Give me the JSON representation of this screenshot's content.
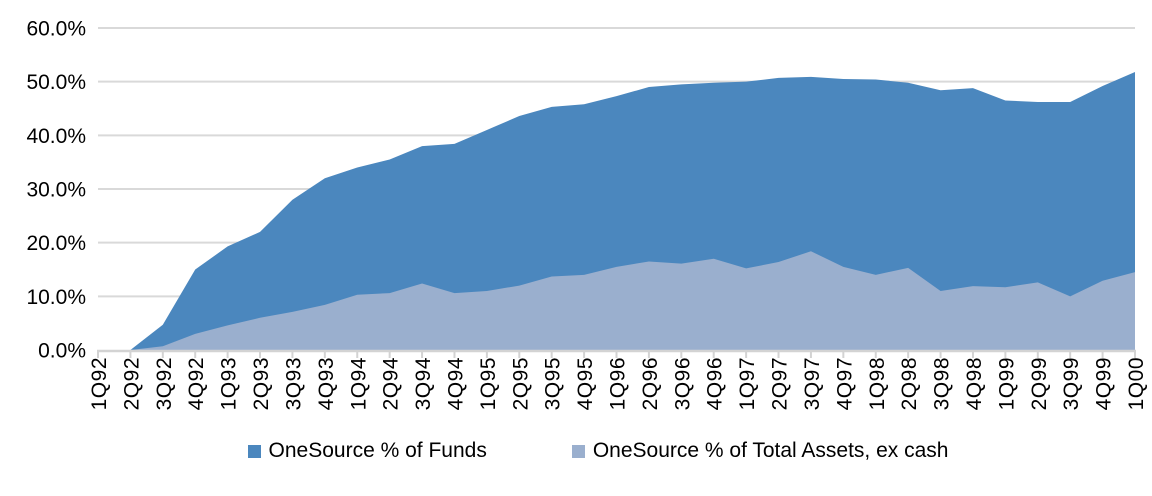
{
  "chart_data": {
    "type": "area",
    "title": "",
    "xlabel": "",
    "ylabel": "",
    "categories": [
      "1Q92",
      "2Q92",
      "3Q92",
      "4Q92",
      "1Q93",
      "2Q93",
      "3Q93",
      "4Q93",
      "1Q94",
      "2Q94",
      "3Q94",
      "4Q94",
      "1Q95",
      "2Q95",
      "3Q95",
      "4Q95",
      "1Q96",
      "2Q96",
      "3Q96",
      "4Q96",
      "1Q97",
      "2Q97",
      "3Q97",
      "4Q97",
      "1Q98",
      "2Q98",
      "3Q98",
      "4Q98",
      "1Q99",
      "2Q99",
      "3Q99",
      "4Q99",
      "1Q00"
    ],
    "series": [
      {
        "name": "OneSource % of Funds",
        "color": "#4B87BE",
        "values": [
          0,
          0,
          4.7,
          15.0,
          19.3,
          22.0,
          28.0,
          32.0,
          34.0,
          35.5,
          38.0,
          38.4,
          41.0,
          43.6,
          45.3,
          45.8,
          47.3,
          49.0,
          49.5,
          49.8,
          50.0,
          50.7,
          50.9,
          50.5,
          50.4,
          49.8,
          48.4,
          48.8,
          46.5,
          46.2,
          46.2,
          49.2,
          51.8
        ]
      },
      {
        "name": "OneSource % of Total Assets, ex cash",
        "color": "#9AAFCE",
        "values": [
          0,
          0,
          0.7,
          3.0,
          4.6,
          6.0,
          7.1,
          8.4,
          10.3,
          10.6,
          12.4,
          10.6,
          11.0,
          12.0,
          13.7,
          14.0,
          15.5,
          16.5,
          16.1,
          17.0,
          15.2,
          16.4,
          18.4,
          15.5,
          14.0,
          15.3,
          11.0,
          11.9,
          11.7,
          12.6,
          10.0,
          12.9,
          14.5
        ]
      }
    ],
    "series_mode": "overlaid",
    "ylim": [
      0,
      60
    ],
    "y_ticks": [
      {
        "value": 0,
        "label": "0.0%"
      },
      {
        "value": 10,
        "label": "10.0%"
      },
      {
        "value": 20,
        "label": "20.0%"
      },
      {
        "value": 30,
        "label": "30.0%"
      },
      {
        "value": 40,
        "label": "40.0%"
      },
      {
        "value": 50,
        "label": "50.0%"
      },
      {
        "value": 60,
        "label": "60.0%"
      }
    ],
    "grid": true,
    "legend_position": "bottom"
  },
  "style": {
    "gridline_color": "#D9D9D9",
    "axis_color": "#D3D3D3",
    "text_color": "#000000"
  }
}
